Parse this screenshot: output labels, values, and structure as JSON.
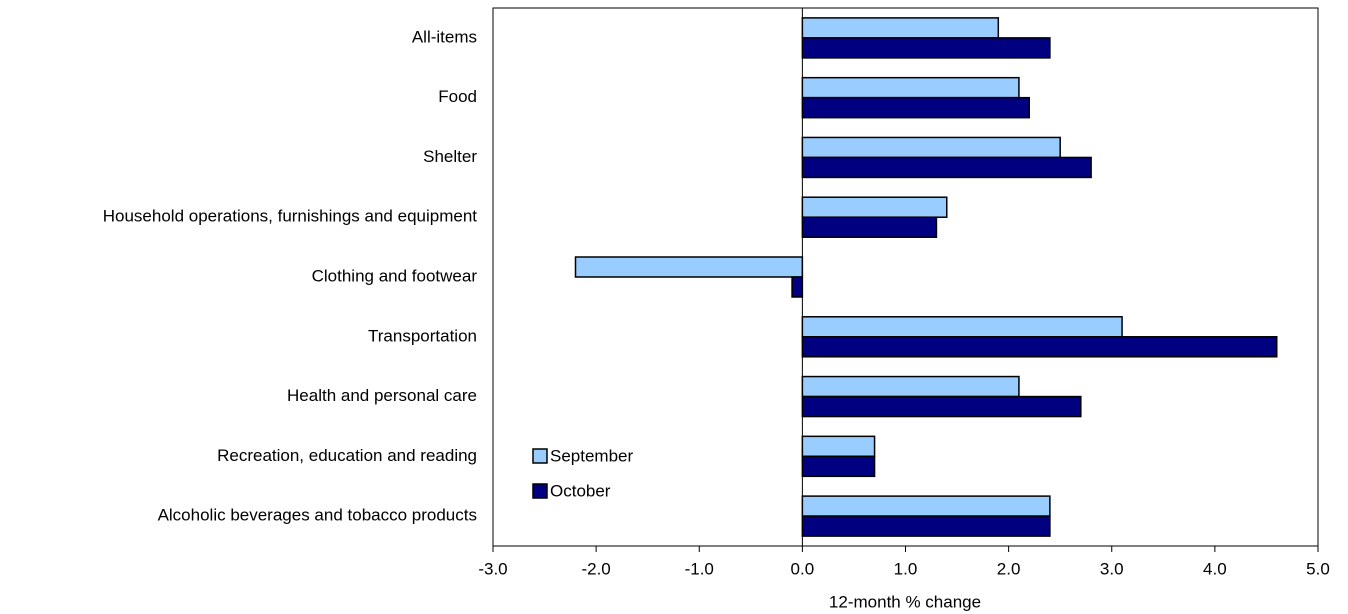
{
  "chart_data": {
    "type": "hbar",
    "x_label": "12-month % change",
    "categories": [
      "All-items",
      "Food",
      "Shelter",
      "Household operations, furnishings and equipment",
      "Clothing and footwear",
      "Transportation",
      "Health and personal care",
      "Recreation, education and reading",
      "Alcoholic beverages and tobacco products"
    ],
    "series": [
      {
        "name": "September",
        "color": "#99ccff",
        "values": [
          1.9,
          2.1,
          2.5,
          1.4,
          -2.2,
          3.1,
          2.1,
          0.7,
          2.4
        ]
      },
      {
        "name": "October",
        "color": "#000080",
        "values": [
          2.4,
          2.2,
          2.8,
          1.3,
          -0.1,
          4.6,
          2.7,
          0.7,
          2.4
        ]
      }
    ],
    "xlim": [
      -3,
      5
    ],
    "xticks": [
      {
        "value": -3,
        "label": "-3.0"
      },
      {
        "value": -2,
        "label": "-2.0"
      },
      {
        "value": -1,
        "label": "-1.0"
      },
      {
        "value": 0,
        "label": "0.0"
      },
      {
        "value": 1,
        "label": "1.0"
      },
      {
        "value": 2,
        "label": "2.0"
      },
      {
        "value": 3,
        "label": "3.0"
      },
      {
        "value": 4,
        "label": "4.0"
      },
      {
        "value": 5,
        "label": "5.0"
      }
    ],
    "legend": "lower left"
  }
}
